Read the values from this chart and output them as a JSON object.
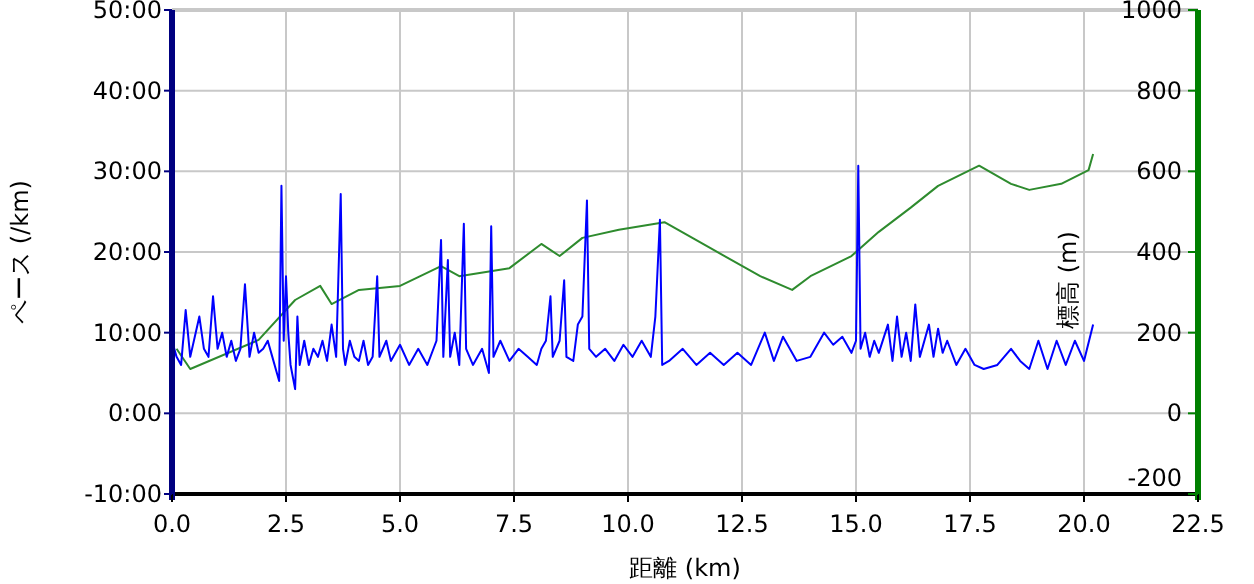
{
  "chart_data": {
    "type": "line",
    "xlabel": "距離 (km)",
    "ylabel": "ペース (/km)",
    "y2label": "標高 (m)",
    "grid": true,
    "xlim": [
      0,
      22.5
    ],
    "xticks": [
      {
        "value": 0,
        "label": "0.0"
      },
      {
        "value": 2.5,
        "label": "2.5"
      },
      {
        "value": 5,
        "label": "5.0"
      },
      {
        "value": 7.5,
        "label": "7.5"
      },
      {
        "value": 10,
        "label": "10.0"
      },
      {
        "value": 12.5,
        "label": "12.5"
      },
      {
        "value": 15,
        "label": "15.0"
      },
      {
        "value": 17.5,
        "label": "17.5"
      },
      {
        "value": 20,
        "label": "20.0"
      },
      {
        "value": 22.5,
        "label": "22.5"
      }
    ],
    "ylim": [
      -10,
      50
    ],
    "yticks": [
      {
        "value": -10,
        "label": "-10:00"
      },
      {
        "value": 0,
        "label": "0:00"
      },
      {
        "value": 10,
        "label": "10:00"
      },
      {
        "value": 20,
        "label": "20:00"
      },
      {
        "value": 30,
        "label": "30:00"
      },
      {
        "value": 40,
        "label": "40:00"
      },
      {
        "value": 50,
        "label": "50:00"
      }
    ],
    "y2lim": [
      -200,
      1000
    ],
    "y2ticks": [
      -200,
      0,
      200,
      400,
      600,
      800,
      1000
    ],
    "series": [
      {
        "color": "#0000ff",
        "x": [
          0.0,
          0.1,
          0.2,
          0.3,
          0.4,
          0.5,
          0.6,
          0.7,
          0.8,
          0.9,
          1.0,
          1.1,
          1.2,
          1.3,
          1.4,
          1.5,
          1.6,
          1.7,
          1.8,
          1.9,
          2.0,
          2.1,
          2.2,
          2.3,
          2.35,
          2.4,
          2.45,
          2.5,
          2.55,
          2.6,
          2.7,
          2.75,
          2.8,
          2.9,
          3.0,
          3.1,
          3.2,
          3.3,
          3.4,
          3.5,
          3.6,
          3.7,
          3.75,
          3.8,
          3.9,
          4.0,
          4.1,
          4.2,
          4.3,
          4.4,
          4.5,
          4.55,
          4.7,
          4.8,
          5.0,
          5.2,
          5.4,
          5.6,
          5.8,
          5.9,
          5.95,
          6.05,
          6.1,
          6.2,
          6.3,
          6.4,
          6.45,
          6.6,
          6.8,
          6.95,
          7.0,
          7.05,
          7.2,
          7.4,
          7.6,
          7.8,
          8.0,
          8.1,
          8.2,
          8.3,
          8.35,
          8.5,
          8.6,
          8.65,
          8.8,
          8.9,
          9.0,
          9.1,
          9.15,
          9.3,
          9.5,
          9.7,
          9.9,
          10.1,
          10.3,
          10.5,
          10.6,
          10.7,
          10.75,
          10.9,
          11.2,
          11.5,
          11.8,
          12.1,
          12.4,
          12.7,
          13.0,
          13.2,
          13.4,
          13.7,
          14.0,
          14.3,
          14.5,
          14.7,
          14.9,
          15.0,
          15.05,
          15.1,
          15.2,
          15.3,
          15.4,
          15.5,
          15.7,
          15.8,
          15.9,
          16.0,
          16.1,
          16.2,
          16.3,
          16.4,
          16.6,
          16.7,
          16.8,
          16.9,
          17.0,
          17.2,
          17.4,
          17.6,
          17.8,
          18.1,
          18.4,
          18.6,
          18.8,
          19.0,
          19.2,
          19.4,
          19.6,
          19.8,
          20.0,
          20.2
        ],
        "values": [
          9,
          7,
          6,
          12.8,
          7,
          9.5,
          12,
          8,
          7,
          14.5,
          8,
          10,
          7,
          9,
          6.5,
          8,
          16,
          7,
          10,
          7.5,
          8,
          9,
          7,
          5,
          4,
          28.2,
          9,
          17,
          10,
          6,
          3,
          12,
          6,
          9,
          6,
          8,
          7,
          9,
          6.5,
          11,
          7,
          27.2,
          8,
          6,
          9,
          7,
          6.5,
          9,
          6,
          7,
          17,
          7,
          9,
          6.5,
          8.5,
          6,
          8,
          6,
          9,
          21.5,
          7,
          19,
          7,
          10,
          6,
          23.5,
          8,
          6,
          8,
          5,
          23.2,
          7,
          9,
          6.5,
          8,
          7,
          6,
          8,
          9,
          14.5,
          7,
          9,
          16.5,
          7,
          6.5,
          11,
          12,
          26.4,
          8,
          7,
          8,
          6.5,
          8.5,
          7,
          9,
          7,
          12,
          24,
          6,
          6.5,
          8,
          6,
          7.5,
          6,
          7.5,
          6,
          10,
          6.5,
          9.5,
          6.5,
          7,
          10,
          8.5,
          9.5,
          7.5,
          9,
          30.7,
          8,
          10,
          7,
          9,
          7.5,
          11,
          6.5,
          12,
          7,
          10,
          6.5,
          13.5,
          7,
          11,
          7,
          10.5,
          7.5,
          9,
          6,
          8,
          6,
          5.5,
          6,
          8,
          6.5,
          5.5,
          9,
          5.5,
          9,
          6,
          9,
          6.5,
          11
        ]
      },
      {
        "color": "#2e8b2e",
        "axis": "y2",
        "x": [
          0.1,
          0.4,
          1.9,
          2.7,
          3.25,
          3.5,
          4.1,
          5.0,
          5.9,
          6.3,
          7.4,
          8.1,
          8.5,
          9.0,
          9.8,
          10.8,
          11.8,
          12.9,
          13.6,
          14.0,
          14.9,
          15.5,
          16.2,
          16.8,
          17.7,
          18.4,
          18.8,
          19.5,
          20.1,
          20.2
        ],
        "values": [
          160,
          110,
          182,
          281,
          316,
          271,
          306,
          316,
          365,
          340,
          360,
          420,
          390,
          435,
          455,
          474,
          410,
          340,
          306,
          340,
          390,
          450,
          510,
          564,
          614,
          569,
          554,
          569,
          603,
          643
        ]
      }
    ]
  }
}
